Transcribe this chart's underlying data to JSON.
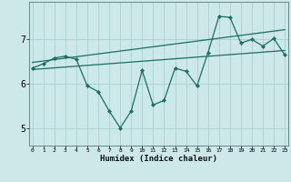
{
  "xlabel": "Humidex (Indice chaleur)",
  "bg_color": "#cce8e8",
  "line_color": "#1a6e64",
  "grid_color": "#aad0d0",
  "x_ticks": [
    0,
    1,
    2,
    3,
    4,
    5,
    6,
    7,
    8,
    9,
    10,
    11,
    12,
    13,
    14,
    15,
    16,
    17,
    18,
    19,
    20,
    21,
    22,
    23
  ],
  "y_ticks": [
    5,
    6,
    7
  ],
  "xlim": [
    -0.3,
    23.3
  ],
  "ylim": [
    4.6,
    7.85
  ],
  "zigzag_x": [
    0,
    1,
    2,
    3,
    4,
    5,
    6,
    7,
    8,
    9,
    10,
    11,
    12,
    13,
    14,
    15,
    16,
    17,
    18,
    19,
    20,
    21,
    22,
    23
  ],
  "zigzag_y": [
    6.35,
    6.45,
    6.58,
    6.62,
    6.55,
    5.95,
    5.82,
    5.38,
    5.0,
    5.38,
    6.3,
    5.52,
    5.62,
    6.35,
    6.28,
    5.95,
    6.7,
    7.52,
    7.5,
    6.92,
    7.0,
    6.85,
    7.02,
    6.65
  ],
  "trend1_x": [
    0,
    23
  ],
  "trend1_y": [
    6.32,
    6.75
  ],
  "trend2_x": [
    0,
    23
  ],
  "trend2_y": [
    6.48,
    7.22
  ]
}
